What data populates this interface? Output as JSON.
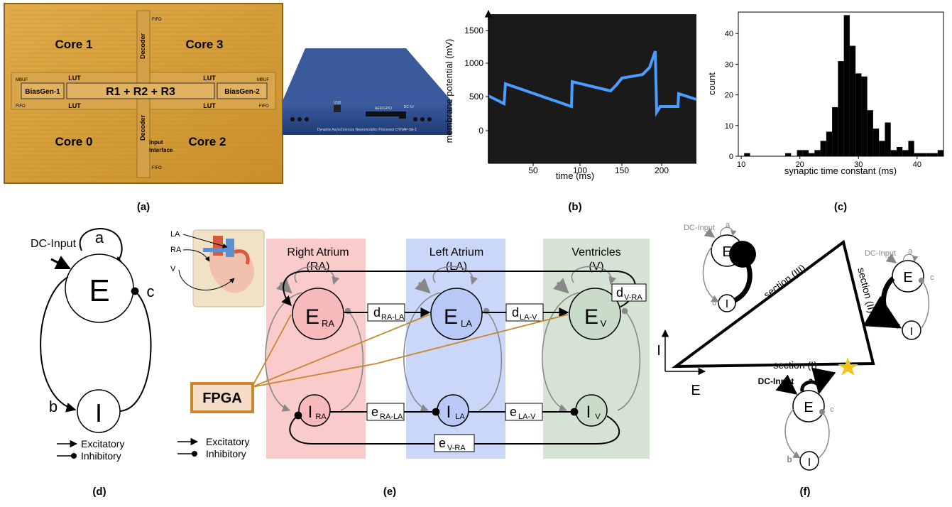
{
  "panel_labels": {
    "a": "(a)",
    "b": "(b)",
    "c": "(c)",
    "d": "(d)",
    "e": "(e)",
    "f": "(f)"
  },
  "chip": {
    "cores": [
      "Core 1",
      "Core 3",
      "Core 0",
      "Core 2"
    ],
    "center": "R1 + R2 + R3",
    "biasgen_left": "BiasGen-1",
    "biasgen_right": "BiasGen-2",
    "lut": "LUT",
    "decoder": "Decoder",
    "fifo": "FIFO",
    "mbuf": "MBUF",
    "input_interface": [
      "Input",
      "Interface"
    ]
  },
  "device": {
    "usb": "USB",
    "aer": "AER/GPIO",
    "dc": "DC 5V",
    "caption": "Dynamic Asynchronous Neuromorphic Processor DYNAP-SE-1"
  },
  "plot_b": {
    "xlabel": "time (ms)",
    "ylabel": "membrane potential (mV)",
    "xticks": [
      "50",
      "100",
      "150",
      "200"
    ],
    "yticks": [
      "0",
      "500",
      "1000",
      "1500"
    ],
    "colors": {
      "trace": "#4a9dff",
      "background": "#1a1a1a"
    }
  },
  "chart_data": {
    "type": "bar",
    "xlabel": "synaptic time constant (ms)",
    "ylabel": "count",
    "xlim": [
      9.5,
      44.5
    ],
    "ylim": [
      0,
      47
    ],
    "xticks": [
      10,
      20,
      30,
      40
    ],
    "yticks": [
      0,
      10,
      20,
      30,
      40
    ],
    "bin_width": 1,
    "bins": [
      11,
      18,
      20,
      21,
      22,
      23,
      24,
      25,
      26,
      27,
      28,
      29,
      30,
      31,
      32,
      33,
      34,
      35,
      36,
      37,
      38,
      39,
      40,
      41,
      42,
      43,
      44
    ],
    "counts": [
      1,
      1,
      2,
      2,
      1,
      2,
      5,
      8,
      16,
      31,
      46,
      36,
      27,
      26,
      15,
      9,
      5,
      11,
      2,
      3,
      2,
      5,
      1,
      1,
      1,
      1,
      2
    ]
  },
  "panel_d": {
    "dc_input": "DC-Input",
    "e": "E",
    "i": "I",
    "a": "a",
    "b": "b",
    "c": "c",
    "legend": [
      "Excitatory",
      "Inhibitory"
    ]
  },
  "panel_e": {
    "regions": [
      {
        "name": "Right Atrium",
        "abbr": "(RA)",
        "color": "#f7b9b9"
      },
      {
        "name": "Left Atrium",
        "abbr": "(LA)",
        "color": "#b9c9f7"
      },
      {
        "name": "Ventricles",
        "abbr": "(V)",
        "color": "#c9dcc8"
      }
    ],
    "heart_labels": [
      "LA",
      "RA",
      "V"
    ],
    "fpga": "FPGA",
    "delays": [
      "RA-LA",
      "LA-V",
      "V-RA"
    ],
    "legend": [
      "Excitatory",
      "Inhibitory"
    ],
    "colors": {
      "fpga": "#c8872a",
      "fpga_fill": "#f6dcc6"
    }
  },
  "panel_f": {
    "sections": [
      "section (I)",
      "section (II)",
      "section (III)"
    ],
    "axes": {
      "x": "E",
      "y": "I"
    },
    "dc_input": "DC-Input",
    "e": "E",
    "i": "I",
    "a": "a",
    "b": "b",
    "c": "c",
    "star_color": "#f2c418"
  }
}
